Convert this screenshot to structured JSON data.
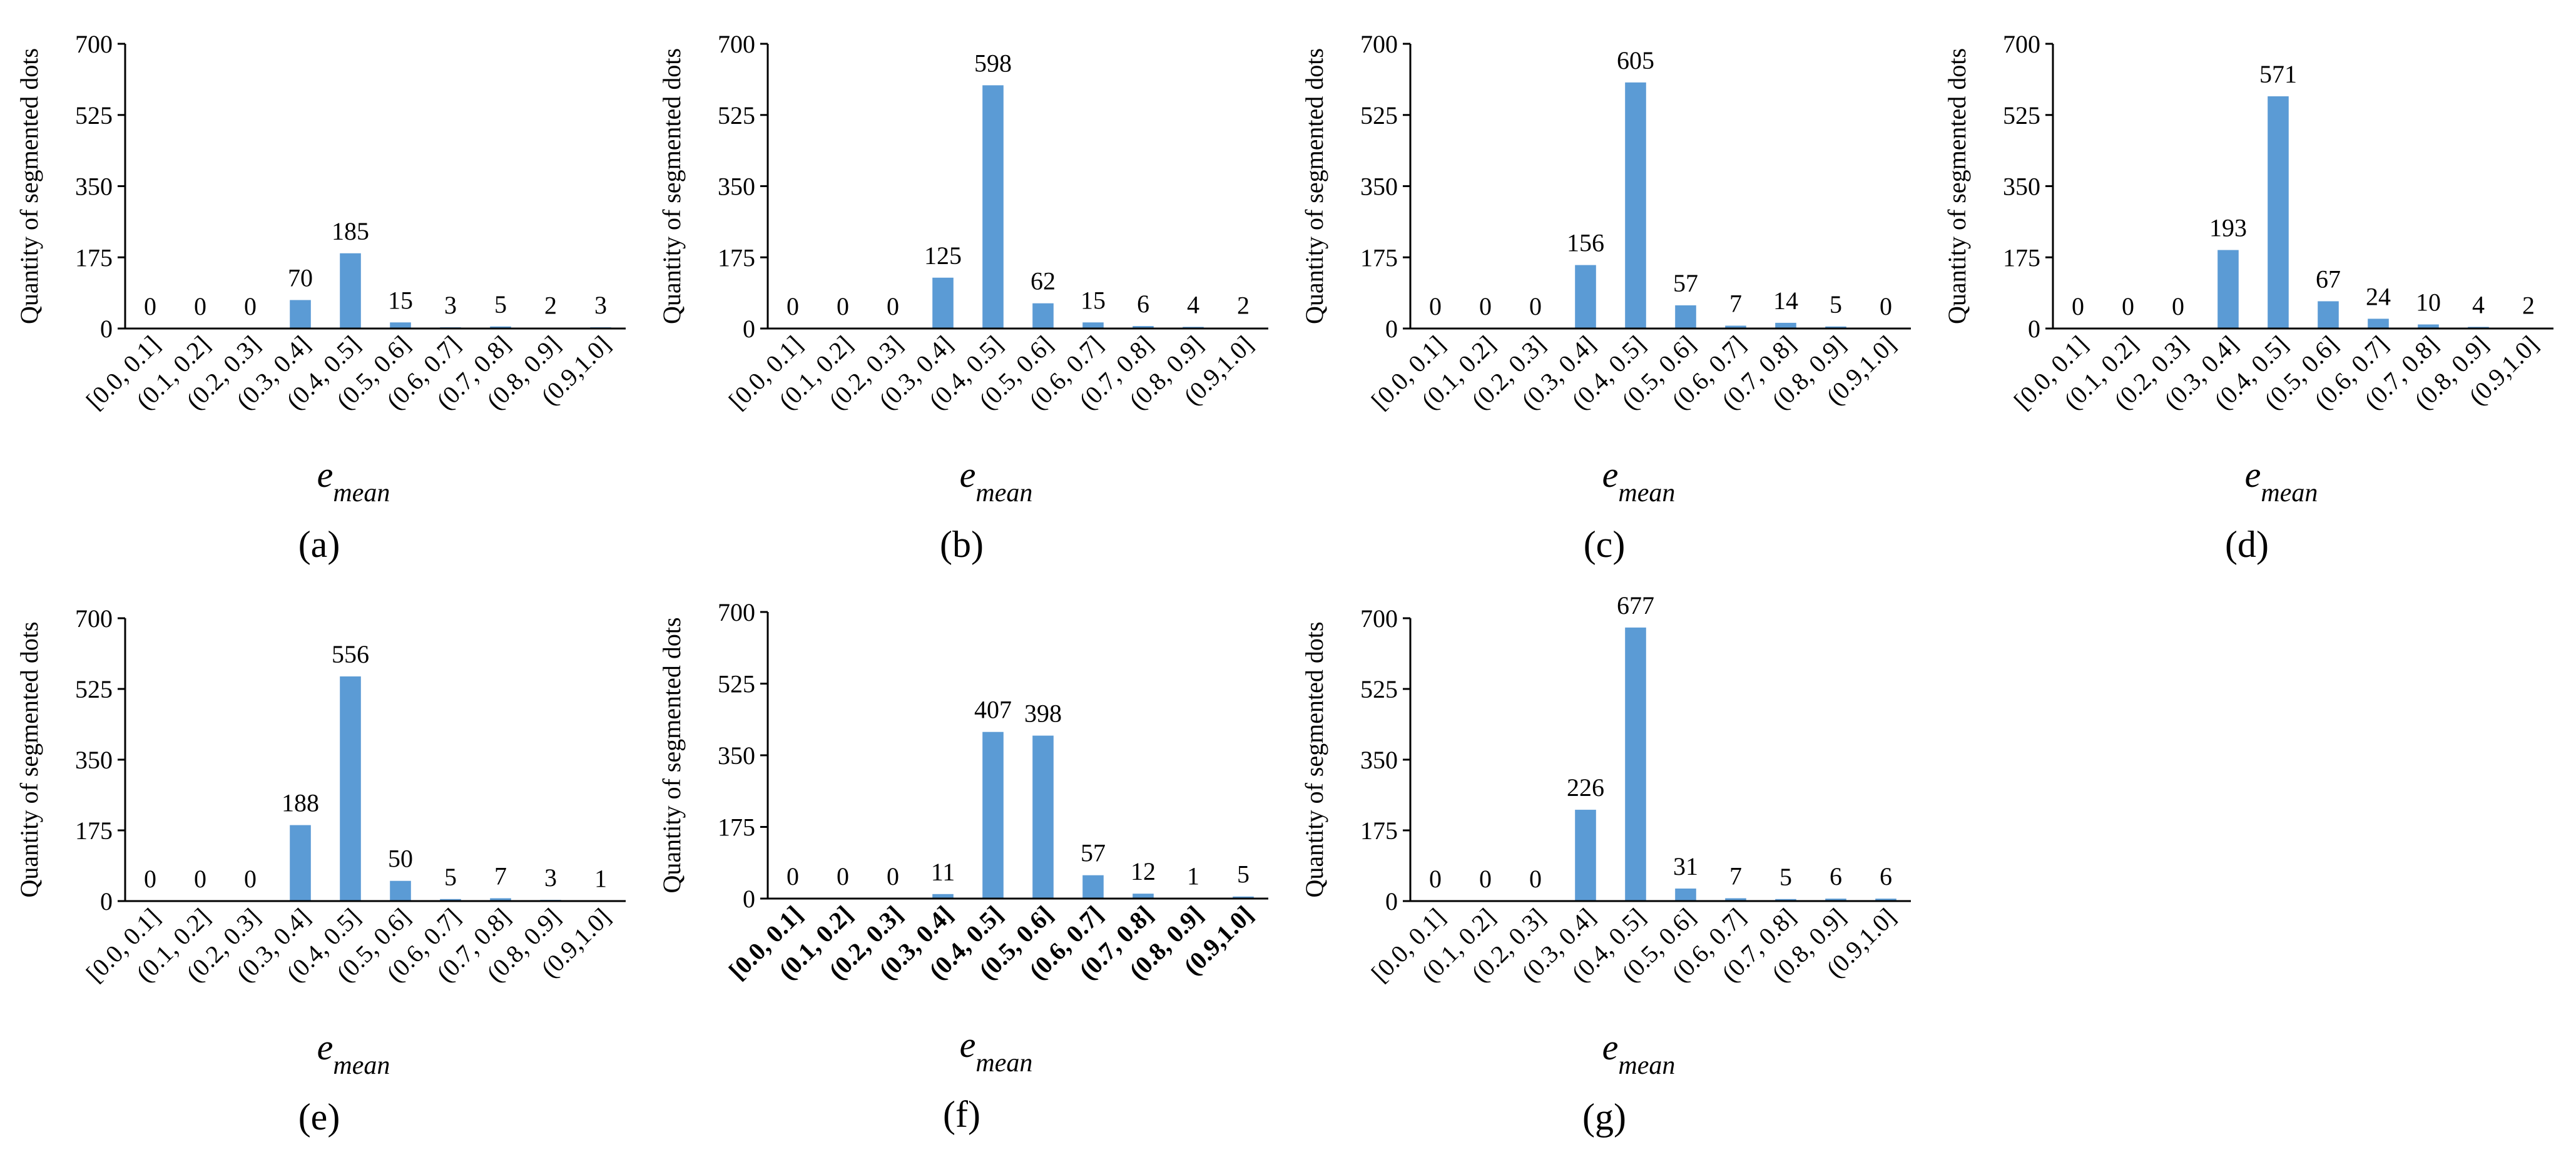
{
  "chart_data": [
    {
      "type": "bar",
      "caption": "(a)",
      "categories": [
        "[0.0, 0.1]",
        "(0.1, 0.2]",
        "(0.2, 0.3]",
        "(0.3, 0.4]",
        "(0.4, 0.5]",
        "(0.5, 0.6]",
        "(0.6, 0.7]",
        "(0.7, 0.8]",
        "(0.8, 0.9]",
        "(0.9,1.0]"
      ],
      "values": [
        0,
        0,
        0,
        70,
        185,
        15,
        3,
        5,
        2,
        3
      ],
      "ylabel": "Quantity of segmented dots",
      "xlabel": "e",
      "xlabel_sub": "mean",
      "ylim": [
        0,
        700
      ],
      "yticks": [
        0,
        175,
        350,
        525,
        700
      ],
      "bold_categories": false,
      "color": "#5B9BD5"
    },
    {
      "type": "bar",
      "caption": "(b)",
      "categories": [
        "[0.0, 0.1]",
        "(0.1, 0.2]",
        "(0.2, 0.3]",
        "(0.3, 0.4]",
        "(0.4, 0.5]",
        "(0.5, 0.6]",
        "(0.6, 0.7]",
        "(0.7, 0.8]",
        "(0.8, 0.9]",
        "(0.9,1.0]"
      ],
      "values": [
        0,
        0,
        0,
        125,
        598,
        62,
        15,
        6,
        4,
        2
      ],
      "ylabel": "Quantity of segmented dots",
      "xlabel": "e",
      "xlabel_sub": "mean",
      "ylim": [
        0,
        700
      ],
      "yticks": [
        0,
        175,
        350,
        525,
        700
      ],
      "bold_categories": false,
      "color": "#5B9BD5"
    },
    {
      "type": "bar",
      "caption": "(c)",
      "categories": [
        "[0.0, 0.1]",
        "(0.1, 0.2]",
        "(0.2, 0.3]",
        "(0.3, 0.4]",
        "(0.4, 0.5]",
        "(0.5, 0.6]",
        "(0.6, 0.7]",
        "(0.7, 0.8]",
        "(0.8, 0.9]",
        "(0.9,1.0]"
      ],
      "values": [
        0,
        0,
        0,
        156,
        605,
        57,
        7,
        14,
        5,
        0
      ],
      "ylabel": "Quantity of segmented dots",
      "xlabel": "e",
      "xlabel_sub": "mean",
      "ylim": [
        0,
        700
      ],
      "yticks": [
        0,
        175,
        350,
        525,
        700
      ],
      "bold_categories": false,
      "color": "#5B9BD5"
    },
    {
      "type": "bar",
      "caption": "(d)",
      "categories": [
        "[0.0, 0.1]",
        "(0.1, 0.2]",
        "(0.2, 0.3]",
        "(0.3, 0.4]",
        "(0.4, 0.5]",
        "(0.5, 0.6]",
        "(0.6, 0.7]",
        "(0.7, 0.8]",
        "(0.8, 0.9]",
        "(0.9,1.0]"
      ],
      "values": [
        0,
        0,
        0,
        193,
        571,
        67,
        24,
        10,
        4,
        2
      ],
      "ylabel": "Quantity of segmented dots",
      "xlabel": "e",
      "xlabel_sub": "mean",
      "ylim": [
        0,
        700
      ],
      "yticks": [
        0,
        175,
        350,
        525,
        700
      ],
      "bold_categories": false,
      "color": "#5B9BD5"
    },
    {
      "type": "bar",
      "caption": "(e)",
      "categories": [
        "[0.0, 0.1]",
        "(0.1, 0.2]",
        "(0.2, 0.3]",
        "(0.3, 0.4]",
        "(0.4, 0.5]",
        "(0.5, 0.6]",
        "(0.6, 0.7]",
        "(0.7, 0.8]",
        "(0.8, 0.9]",
        "(0.9,1.0]"
      ],
      "values": [
        0,
        0,
        0,
        188,
        556,
        50,
        5,
        7,
        3,
        1
      ],
      "ylabel": "Quantity of segmented dots",
      "xlabel": "e",
      "xlabel_sub": "mean",
      "ylim": [
        0,
        700
      ],
      "yticks": [
        0,
        175,
        350,
        525,
        700
      ],
      "bold_categories": false,
      "color": "#5B9BD5"
    },
    {
      "type": "bar",
      "caption": "(f)",
      "categories": [
        "[0.0, 0.1]",
        "(0.1, 0.2]",
        "(0.2, 0.3]",
        "(0.3, 0.4]",
        "(0.4, 0.5]",
        "(0.5, 0.6]",
        "(0.6, 0.7]",
        "(0.7, 0.8]",
        "(0.8, 0.9]",
        "(0.9,1.0]"
      ],
      "values": [
        0,
        0,
        0,
        11,
        407,
        398,
        57,
        12,
        1,
        5
      ],
      "ylabel": "Quantity of segmented dots",
      "xlabel": "e",
      "xlabel_sub": "mean",
      "ylim": [
        0,
        700
      ],
      "yticks": [
        0,
        175,
        350,
        525,
        700
      ],
      "bold_categories": true,
      "color": "#5B9BD5"
    },
    {
      "type": "bar",
      "caption": "(g)",
      "categories": [
        "[0.0, 0.1]",
        "(0.1, 0.2]",
        "(0.2, 0.3]",
        "(0.3, 0.4]",
        "(0.4, 0.5]",
        "(0.5, 0.6]",
        "(0.6, 0.7]",
        "(0.7, 0.8]",
        "(0.8, 0.9]",
        "(0.9,1.0]"
      ],
      "values": [
        0,
        0,
        0,
        226,
        677,
        31,
        7,
        5,
        6,
        6
      ],
      "ylabel": "Quantity of segmented dots",
      "xlabel": "e",
      "xlabel_sub": "mean",
      "ylim": [
        0,
        700
      ],
      "yticks": [
        0,
        175,
        350,
        525,
        700
      ],
      "bold_categories": false,
      "color": "#5B9BD5"
    }
  ]
}
